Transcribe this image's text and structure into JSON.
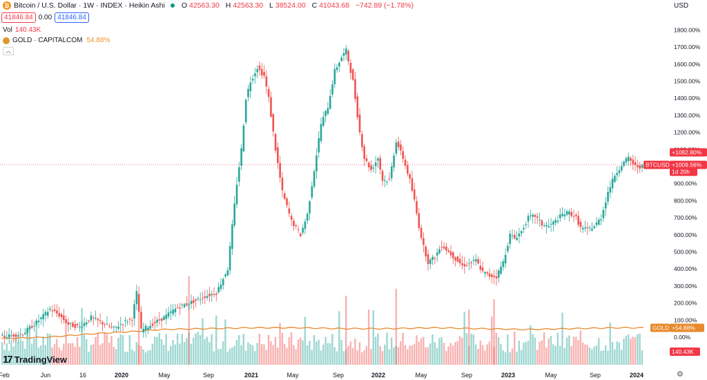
{
  "header": {
    "title": "Bitcoin / U.S. Dollar · 1W · INDEX · Heikin Ashi",
    "ohlc": [
      {
        "k": "O",
        "v": "42563.30"
      },
      {
        "k": "H",
        "v": "42563.30"
      },
      {
        "k": "L",
        "v": "38524.00"
      },
      {
        "k": "C",
        "v": "41043.68"
      }
    ],
    "change": "−742.89 (−1.78%)",
    "sell_price": "41846.84",
    "spread": "0.00",
    "buy_price": "41846.84",
    "volume_label": "Vol",
    "volume_value": "140.43K",
    "compare_symbol": "GOLD · CAPITALCOM",
    "compare_value": "54.88%",
    "currency": "USD",
    "logo_text": "TradingView",
    "colors": {
      "up": "#26a69a",
      "down": "#ef5350",
      "gold": "#e8892b",
      "accent": "#2962ff"
    }
  },
  "chart_data": {
    "type": "candlestick",
    "scale": "percentage",
    "y_range": [
      0,
      1850
    ],
    "x_labels": [
      "Feb",
      "Jun",
      "16",
      "2020",
      "May",
      "Sep",
      "2021",
      "May",
      "Sep",
      "2022",
      "May",
      "Sep",
      "2023",
      "May",
      "Sep",
      "2024"
    ],
    "y_ticks": [
      "100.00%",
      "200.00%",
      "300.00%",
      "400.00%",
      "500.00%",
      "600.00%",
      "700.00%",
      "800.00%",
      "900.00%",
      "1000.00%",
      "1100.00%",
      "1200.00%",
      "1300.00%",
      "1400.00%",
      "1500.00%",
      "1600.00%",
      "1700.00%",
      "1800.00%"
    ],
    "zero_tick": "0.00%",
    "series": [
      {
        "name": "BTCUSD",
        "type": "heikin-ashi",
        "keypoints": [
          [
            0,
            0
          ],
          [
            10,
            20
          ],
          [
            18,
            110
          ],
          [
            22,
            165
          ],
          [
            26,
            130
          ],
          [
            30,
            75
          ],
          [
            35,
            60
          ],
          [
            40,
            115
          ],
          [
            46,
            75
          ],
          [
            50,
            50
          ],
          [
            54,
            85
          ],
          [
            58,
            110
          ],
          [
            60,
            260
          ],
          [
            62,
            40
          ],
          [
            66,
            70
          ],
          [
            72,
            115
          ],
          [
            78,
            175
          ],
          [
            82,
            195
          ],
          [
            86,
            215
          ],
          [
            90,
            240
          ],
          [
            95,
            260
          ],
          [
            100,
            400
          ],
          [
            104,
            900
          ],
          [
            106,
            1100
          ],
          [
            108,
            1400
          ],
          [
            110,
            1500
          ],
          [
            113,
            1580
          ],
          [
            116,
            1530
          ],
          [
            118,
            1400
          ],
          [
            121,
            1100
          ],
          [
            124,
            850
          ],
          [
            128,
            680
          ],
          [
            132,
            600
          ],
          [
            135,
            720
          ],
          [
            138,
            980
          ],
          [
            141,
            1250
          ],
          [
            144,
            1350
          ],
          [
            147,
            1560
          ],
          [
            150,
            1640
          ],
          [
            152,
            1680
          ],
          [
            155,
            1500
          ],
          [
            158,
            1200
          ],
          [
            160,
            1050
          ],
          [
            163,
            980
          ],
          [
            166,
            1050
          ],
          [
            168,
            920
          ],
          [
            171,
            920
          ],
          [
            174,
            1150
          ],
          [
            177,
            1050
          ],
          [
            180,
            920
          ],
          [
            182,
            800
          ],
          [
            184,
            650
          ],
          [
            186,
            530
          ],
          [
            188,
            440
          ],
          [
            191,
            470
          ],
          [
            194,
            540
          ],
          [
            197,
            500
          ],
          [
            200,
            460
          ],
          [
            203,
            420
          ],
          [
            206,
            430
          ],
          [
            209,
            450
          ],
          [
            212,
            380
          ],
          [
            215,
            360
          ],
          [
            218,
            355
          ],
          [
            221,
            440
          ],
          [
            224,
            600
          ],
          [
            226,
            580
          ],
          [
            229,
            620
          ],
          [
            232,
            700
          ],
          [
            235,
            710
          ],
          [
            238,
            660
          ],
          [
            241,
            650
          ],
          [
            244,
            680
          ],
          [
            247,
            720
          ],
          [
            250,
            730
          ],
          [
            253,
            700
          ],
          [
            255,
            640
          ],
          [
            258,
            630
          ],
          [
            261,
            650
          ],
          [
            264,
            700
          ],
          [
            267,
            850
          ],
          [
            270,
            950
          ],
          [
            273,
            1010
          ],
          [
            276,
            1050
          ],
          [
            279,
            1000
          ]
        ]
      },
      {
        "name": "GOLD",
        "type": "line",
        "keypoints": [
          [
            0,
            -8
          ],
          [
            20,
            0
          ],
          [
            40,
            20
          ],
          [
            60,
            35
          ],
          [
            70,
            45
          ],
          [
            90,
            50
          ],
          [
            110,
            55
          ],
          [
            130,
            55
          ],
          [
            150,
            50
          ],
          [
            170,
            50
          ],
          [
            190,
            55
          ],
          [
            210,
            50
          ],
          [
            230,
            45
          ],
          [
            250,
            50
          ],
          [
            270,
            55
          ],
          [
            282,
            55
          ]
        ]
      }
    ],
    "volume": {
      "label": "Vol",
      "value": "140.43K"
    },
    "badges": [
      {
        "label": "+1082.80%",
        "value": 1082.8,
        "color": "#f23645"
      },
      {
        "label": "BTCUSD",
        "value": 1009.56,
        "color": "#f23645"
      },
      {
        "label": "+1009.56%",
        "value": 1009.56,
        "color": "#f23645"
      },
      {
        "label": "1d 20h",
        "value": 1009.56,
        "color": "#f23645"
      },
      {
        "label": "GOLD",
        "value": 54.88,
        "color": "#e8892b"
      },
      {
        "label": "+54.88%",
        "value": 54.88,
        "color": "#e8892b"
      },
      {
        "label": "140.43K",
        "value": 0,
        "color": "#f23645"
      }
    ]
  }
}
